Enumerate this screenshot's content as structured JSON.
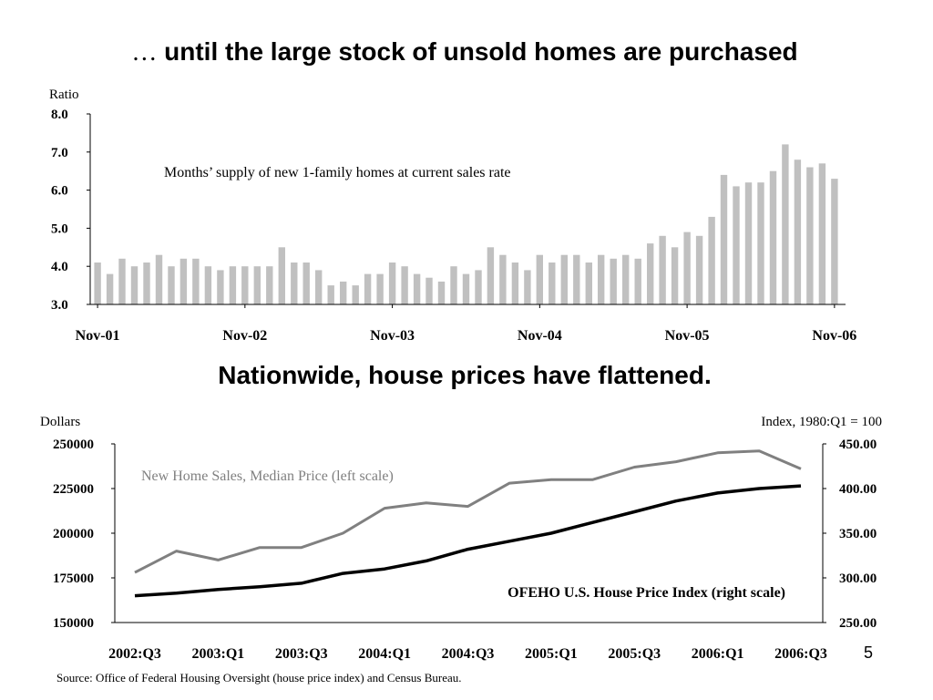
{
  "slide": {
    "title_lead": "…",
    "title_main": "until the large stock of unsold homes are purchased",
    "subtitle": "Nationwide, house prices have flattened.",
    "slide_number": "5",
    "source": "Source: Office of Federal Housing Oversight (house price index) and Census Bureau."
  },
  "chart_data": [
    {
      "type": "bar",
      "ylabel": "Ratio",
      "annotation": "Months’ supply of new 1-family homes at current sales rate",
      "ylim": [
        3.0,
        8.0
      ],
      "yticks": [
        "3.0",
        "4.0",
        "5.0",
        "6.0",
        "7.0",
        "8.0"
      ],
      "xtick_labels": [
        "Nov-01",
        "Nov-02",
        "Nov-03",
        "Nov-04",
        "Nov-05",
        "Nov-06"
      ],
      "color": "#c0c0c0",
      "values": [
        4.1,
        3.8,
        4.2,
        4.0,
        4.1,
        4.3,
        4.0,
        4.2,
        4.2,
        4.0,
        3.9,
        4.0,
        4.0,
        4.0,
        4.0,
        4.5,
        4.1,
        4.1,
        3.9,
        3.5,
        3.6,
        3.5,
        3.8,
        3.8,
        4.1,
        4.0,
        3.8,
        3.7,
        3.6,
        4.0,
        3.8,
        3.9,
        4.5,
        4.3,
        4.1,
        3.9,
        4.3,
        4.1,
        4.3,
        4.3,
        4.1,
        4.3,
        4.2,
        4.3,
        4.2,
        4.6,
        4.8,
        4.5,
        4.9,
        4.8,
        5.3,
        6.4,
        6.1,
        6.2,
        6.2,
        6.5,
        7.2,
        6.8,
        6.6,
        6.7,
        6.3
      ]
    },
    {
      "type": "line",
      "ylabel_left": "Dollars",
      "ylabel_right": "Index, 1980:Q1 = 100",
      "ylim_left": [
        150000,
        250000
      ],
      "ylim_right": [
        250,
        450
      ],
      "yticks_left": [
        "150000",
        "175000",
        "200000",
        "225000",
        "250000"
      ],
      "yticks_right": [
        "250.00",
        "300.00",
        "350.00",
        "400.00",
        "450.00"
      ],
      "xtick_labels": [
        "2002:Q3",
        "2003:Q1",
        "2003:Q3",
        "2004:Q1",
        "2004:Q3",
        "2005:Q1",
        "2005:Q3",
        "2006:Q1",
        "2006:Q3"
      ],
      "series": [
        {
          "name": "New Home Sales, Median Price (left scale)",
          "axis": "left",
          "color": "#808080",
          "values": [
            178000,
            190000,
            185000,
            192000,
            192000,
            200000,
            214000,
            217000,
            215000,
            228000,
            230000,
            230000,
            237000,
            240000,
            245000,
            246000,
            236000
          ]
        },
        {
          "name": "OFEHO U.S. House Price Index (right scale)",
          "axis": "right",
          "color": "#000000",
          "values": [
            280,
            283,
            287,
            290,
            294,
            305,
            310,
            319,
            332,
            341,
            350,
            362,
            374,
            386,
            395,
            400,
            403
          ]
        }
      ]
    }
  ]
}
